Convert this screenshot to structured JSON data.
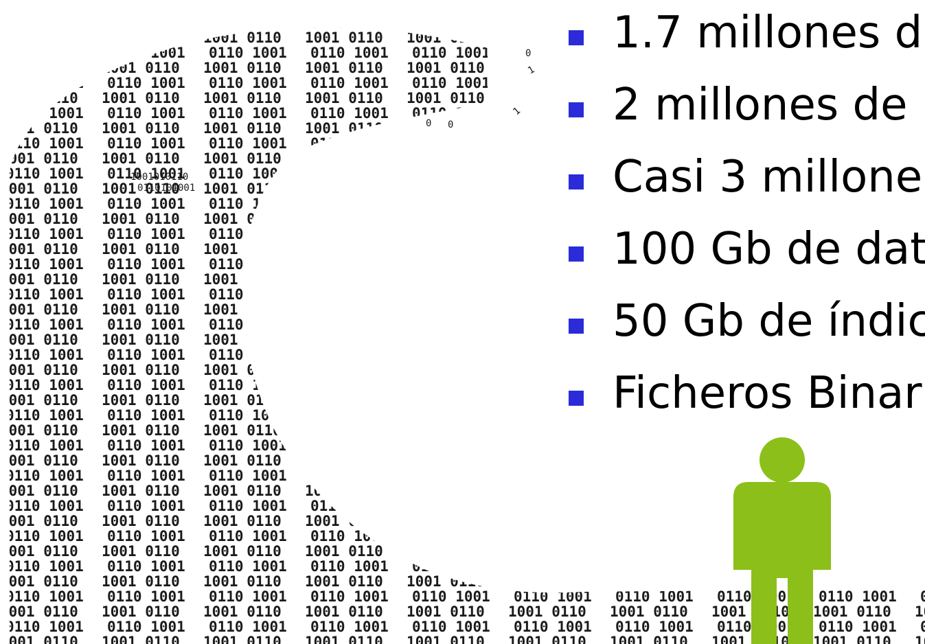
{
  "bullets": [
    {
      "text": "1.7 millones d"
    },
    {
      "text": "2 millones de"
    },
    {
      "text": "Casi 3 millone"
    },
    {
      "text": "100 Gb de dat"
    },
    {
      "text": "50 Gb de índic"
    },
    {
      "text": "Ficheros Binar"
    }
  ],
  "colors": {
    "bullet_marker": "#2b2bd9",
    "person": "#8cbf1a",
    "digits": "#1a1a1a",
    "background": "#ffffff"
  },
  "illustration": {
    "wave_icon": "binary-wave-icon",
    "person_icon": "person-icon"
  }
}
